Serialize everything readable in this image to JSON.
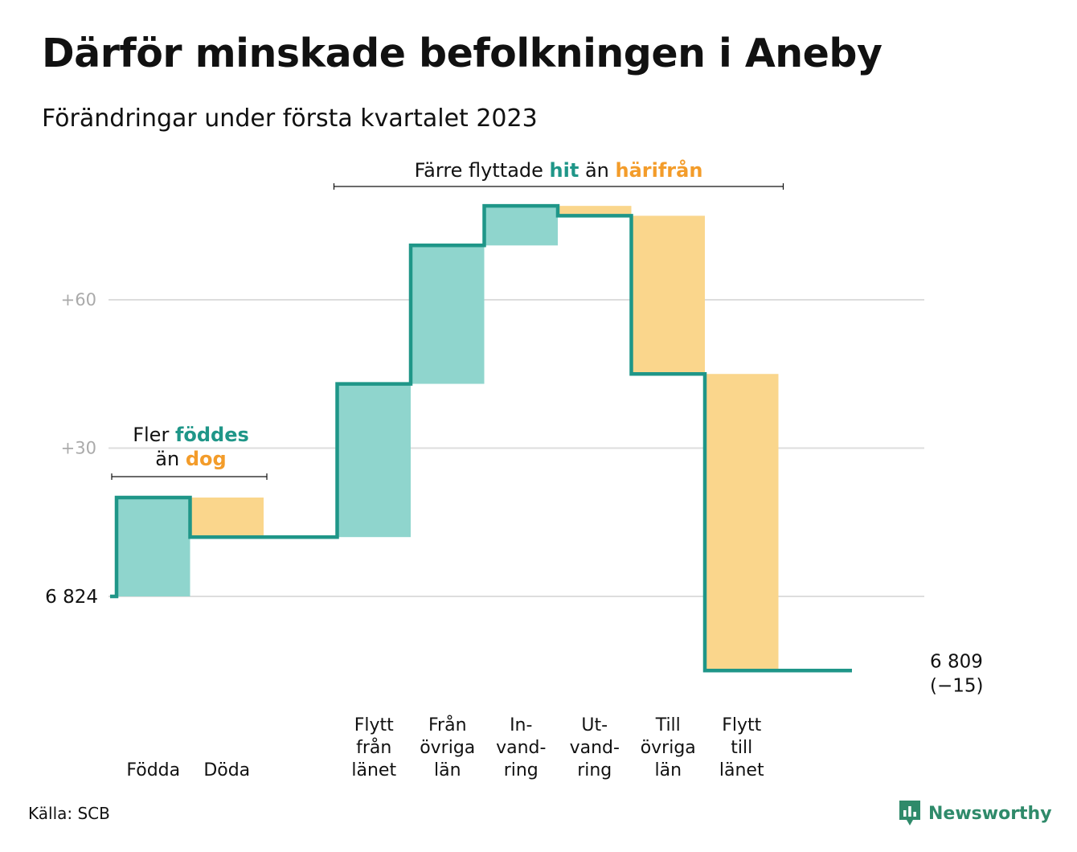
{
  "title": "Därför minskade befolkningen i Aneby",
  "subtitle": "Förändringar under första kvartalet 2023",
  "source": "Källa: SCB",
  "brand": "Newsworthy",
  "colors": {
    "inflow_bar": "#8fd5cd",
    "outflow_bar": "#fad68c",
    "step_line": "#1f9688",
    "accent_green": "#1f9688",
    "accent_orange": "#f39c2a",
    "grid": "#dddddd",
    "tick": "#aaaaaa",
    "brand": "#2f8a6a"
  },
  "annotations": {
    "births_deaths": {
      "line1_prefix": "Fler ",
      "line1_highlight": "föddes",
      "line2_prefix": "än ",
      "line2_highlight": "dog"
    },
    "migration": {
      "prefix": "Färre flyttade ",
      "highlight1": "hit",
      "middle": " än ",
      "highlight2": "härifrån"
    }
  },
  "chart_data": {
    "type": "waterfall",
    "start_value": 6824,
    "start_label": "6 824",
    "end_value": 6809,
    "end_label": "6 809",
    "end_change_label": "(−15)",
    "y_ticks": [
      {
        "value": 60,
        "label": "+60"
      },
      {
        "value": 30,
        "label": "+30"
      }
    ],
    "grid": true,
    "categories": [
      {
        "lines": [
          "Födda"
        ],
        "change": 20,
        "direction": "in"
      },
      {
        "lines": [
          "Döda"
        ],
        "change": -8,
        "direction": "out"
      },
      {
        "lines": [],
        "change": 0,
        "direction": "none"
      },
      {
        "lines": [
          "Flytt",
          "från",
          "länet"
        ],
        "change": 31,
        "direction": "in"
      },
      {
        "lines": [
          "Från",
          "övriga",
          "län"
        ],
        "change": 28,
        "direction": "in"
      },
      {
        "lines": [
          "In-",
          "vand-",
          "ring"
        ],
        "change": 8,
        "direction": "in"
      },
      {
        "lines": [
          "Ut-",
          "vand-",
          "ring"
        ],
        "change": -2,
        "direction": "out"
      },
      {
        "lines": [
          "Till",
          "övriga",
          "län"
        ],
        "change": -32,
        "direction": "out"
      },
      {
        "lines": [
          "Flytt",
          "till",
          "länet"
        ],
        "change": -60,
        "direction": "out"
      },
      {
        "lines": [],
        "change": 0,
        "direction": "none"
      }
    ]
  }
}
